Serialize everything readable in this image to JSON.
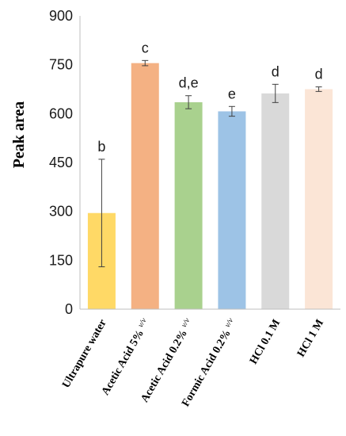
{
  "chart_data": {
    "type": "bar",
    "title": "",
    "xlabel": "",
    "ylabel": "Peak area",
    "ylim": [
      0,
      900
    ],
    "yticks": [
      "0",
      "150",
      "300",
      "450",
      "600",
      "750",
      "900"
    ],
    "grid": false,
    "categories": [
      {
        "main": "Ultrapure water",
        "sup": ""
      },
      {
        "main": "Acetic Acid 5% ",
        "sup": "v/v"
      },
      {
        "main": "Acetic Acid 0.2% ",
        "sup": "v/v"
      },
      {
        "main": "Formic Acid 0.2% ",
        "sup": "v/v"
      },
      {
        "main": "HCl 0.1 M",
        "sup": ""
      },
      {
        "main": "HCl 1 M",
        "sup": ""
      }
    ],
    "values": [
      295,
      755,
      635,
      607,
      662,
      675
    ],
    "errors": [
      165,
      8,
      20,
      15,
      28,
      7
    ],
    "significance": [
      "b",
      "c",
      "d,e",
      "e",
      "d",
      "d"
    ],
    "colors": [
      "#FFD966",
      "#F4B183",
      "#A9D18E",
      "#9DC3E6",
      "#D9D9D9",
      "#FBE5D6"
    ]
  }
}
